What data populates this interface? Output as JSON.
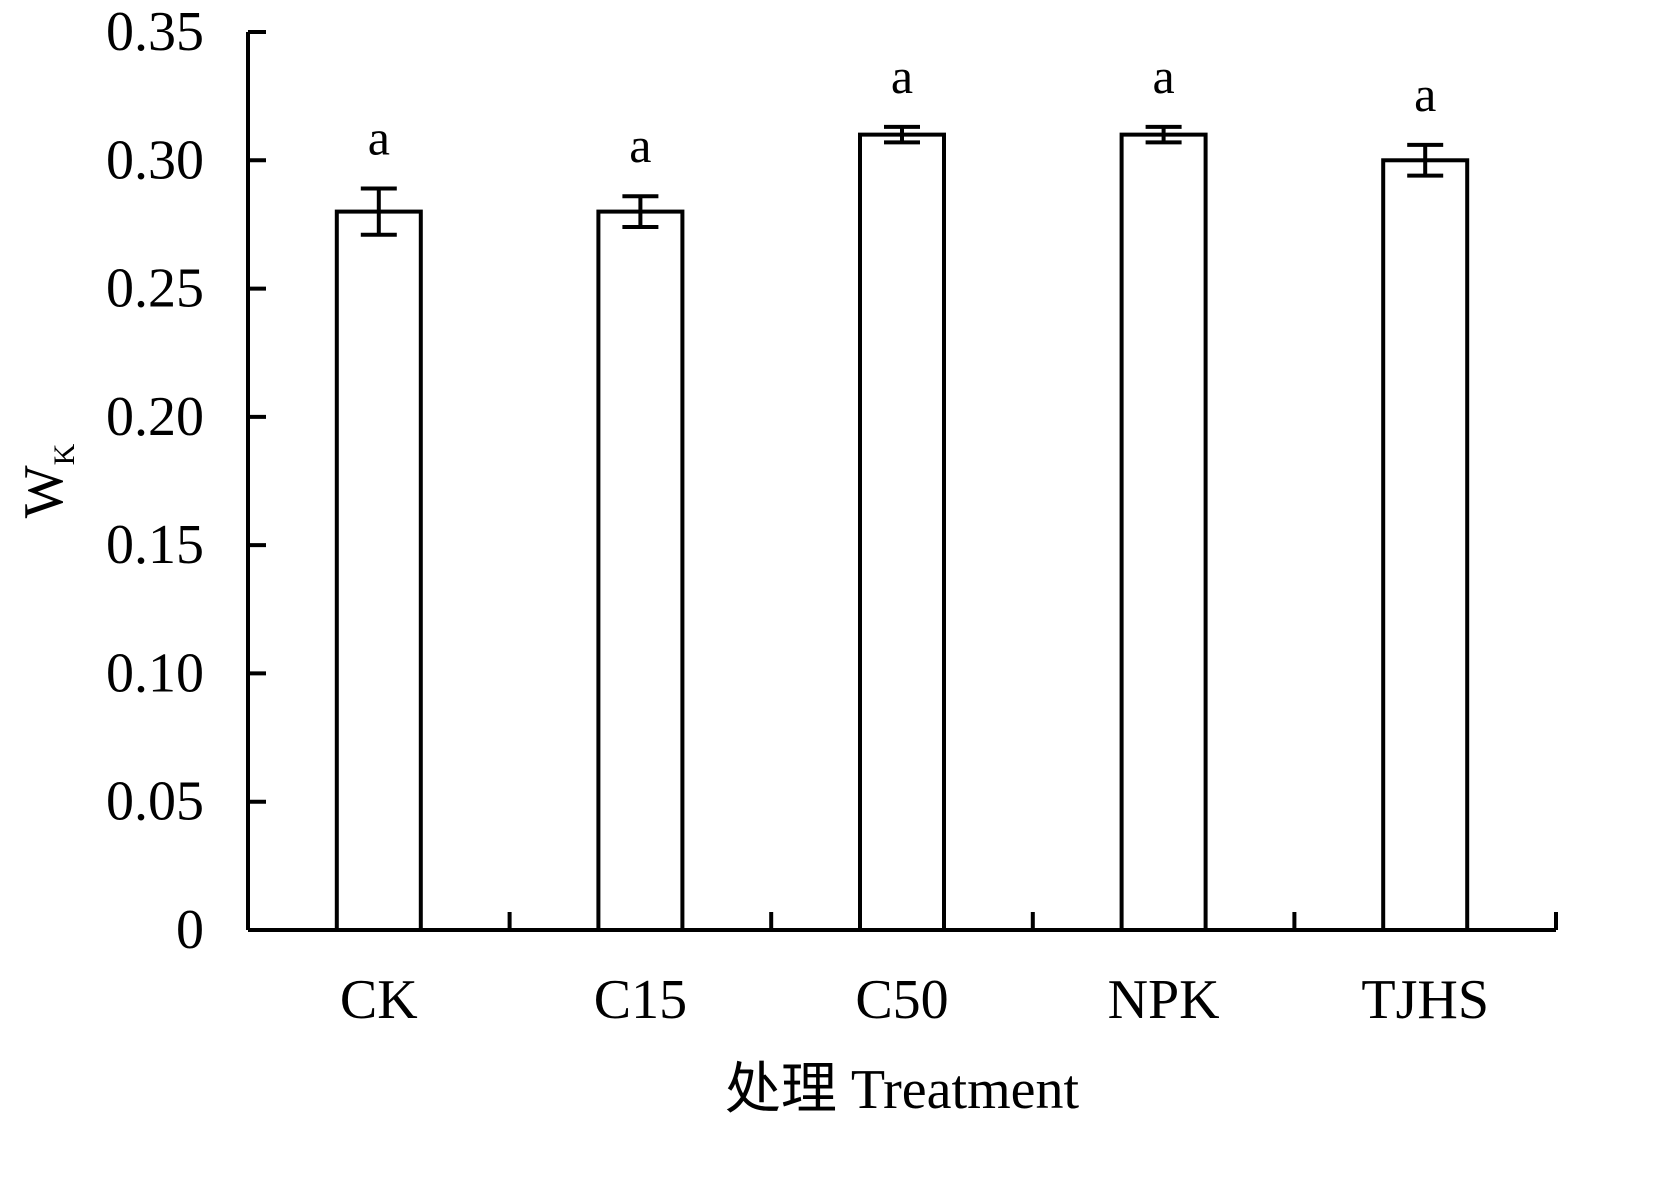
{
  "chart_data": {
    "type": "bar",
    "categories": [
      "CK",
      "C15",
      "C50",
      "NPK",
      "TJHS"
    ],
    "series": [
      {
        "values": [
          0.28,
          0.28,
          0.31,
          0.31,
          0.3
        ],
        "errors": [
          0.009,
          0.006,
          0.003,
          0.003,
          0.006
        ],
        "significance": [
          "a",
          "a",
          "a",
          "a",
          "a"
        ]
      }
    ],
    "ylabel": "W",
    "ylabel_subscript": "K",
    "xlabel": "处理 Treatment",
    "ylim": [
      0,
      0.35
    ],
    "yticks": [
      {
        "value": 0,
        "label": "0"
      },
      {
        "value": 0.05,
        "label": "0.05"
      },
      {
        "value": 0.1,
        "label": "0.10"
      },
      {
        "value": 0.15,
        "label": "0.15"
      },
      {
        "value": 0.2,
        "label": "0.20"
      },
      {
        "value": 0.25,
        "label": "0.25"
      },
      {
        "value": 0.3,
        "label": "0.30"
      },
      {
        "value": 0.35,
        "label": "0.35"
      }
    ],
    "grid": false,
    "bar_fill": "#ffffff",
    "bar_stroke": "#000000"
  }
}
